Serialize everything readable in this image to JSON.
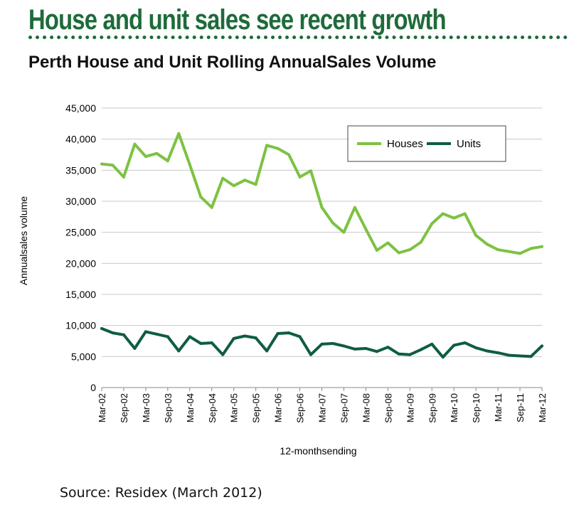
{
  "header": {
    "headline": "House and unit sales see recent growth"
  },
  "footer": {
    "source": "Source: Residex (March 2012)"
  },
  "chart_data": {
    "type": "line",
    "title": "Perth House and Unit Rolling AnnualSales Volume",
    "xlabel": "12-monthsending",
    "ylabel": "Annualsales volume",
    "ylim": [
      0,
      45000
    ],
    "yticks": [
      0,
      5000,
      10000,
      15000,
      20000,
      25000,
      30000,
      35000,
      40000,
      45000
    ],
    "ytick_labels": [
      "0",
      "5,000",
      "10,000",
      "15,000",
      "20,000",
      "25,000",
      "30,000",
      "35,000",
      "40,000",
      "45,000"
    ],
    "x_tick_labels": [
      "Mar-02",
      "Sep-02",
      "Mar-03",
      "Sep-03",
      "Mar-04",
      "Sep-04",
      "Mar-05",
      "Sep-05",
      "Mar-06",
      "Sep-06",
      "Mar-07",
      "Sep-07",
      "Mar-08",
      "Sep-08",
      "Mar-09",
      "Sep-09",
      "Mar-10",
      "Sep-10",
      "Mar-11",
      "Sep-11",
      "Mar-12"
    ],
    "x": [
      "Mar-02",
      "Jun-02",
      "Sep-02",
      "Dec-02",
      "Mar-03",
      "Jun-03",
      "Sep-03",
      "Dec-03",
      "Mar-04",
      "Jun-04",
      "Sep-04",
      "Dec-04",
      "Mar-05",
      "Jun-05",
      "Sep-05",
      "Dec-05",
      "Mar-06",
      "Jun-06",
      "Sep-06",
      "Dec-06",
      "Mar-07",
      "Jun-07",
      "Sep-07",
      "Dec-07",
      "Mar-08",
      "Jun-08",
      "Sep-08",
      "Dec-08",
      "Mar-09",
      "Jun-09",
      "Sep-09",
      "Dec-09",
      "Mar-10",
      "Jun-10",
      "Sep-10",
      "Dec-10",
      "Mar-11",
      "Jun-11",
      "Sep-11",
      "Dec-11",
      "Mar-12"
    ],
    "grid": true,
    "legend_position": "top-right",
    "series": [
      {
        "name": "Houses",
        "color": "#7dc242",
        "values": [
          36000,
          35800,
          33900,
          39200,
          37200,
          37700,
          36500,
          40900,
          35900,
          30700,
          29000,
          33700,
          32500,
          33400,
          32700,
          39000,
          38500,
          37500,
          33900,
          34900,
          29000,
          26500,
          25000,
          29000,
          25500,
          22100,
          23300,
          21700,
          22200,
          23400,
          26400,
          28000,
          27300,
          28000,
          24500,
          23100,
          22200,
          21900,
          21600,
          22400,
          22700
        ]
      },
      {
        "name": "Units",
        "color": "#0f5c45",
        "values": [
          9500,
          8800,
          8500,
          6300,
          9000,
          8600,
          8200,
          5900,
          8200,
          7100,
          7200,
          5300,
          7900,
          8300,
          8000,
          5900,
          8700,
          8800,
          8200,
          5300,
          7000,
          7100,
          6700,
          6200,
          6300,
          5800,
          6500,
          5400,
          5300,
          6100,
          7000,
          4900,
          6800,
          7200,
          6400,
          5900,
          5600,
          5200,
          5100,
          5000,
          6700
        ]
      }
    ]
  }
}
